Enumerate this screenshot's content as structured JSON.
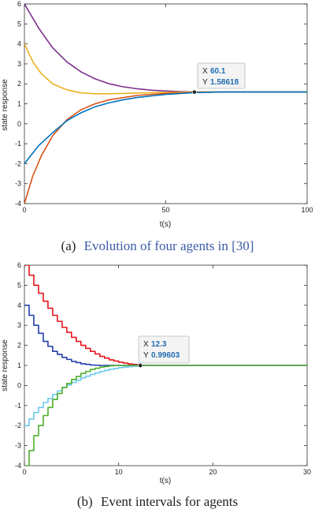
{
  "chart_data": [
    {
      "type": "line",
      "title": "",
      "caption": {
        "label": "(a)",
        "text": "Evolution of four agents in [30]"
      },
      "xlabel": "t(s)",
      "ylabel": "state response",
      "xlim": [
        0,
        100
      ],
      "ylim": [
        -4,
        6
      ],
      "xticks": [
        0,
        50,
        100
      ],
      "yticks": [
        -4,
        -3,
        -2,
        -1,
        0,
        1,
        2,
        3,
        4,
        5,
        6
      ],
      "grid": false,
      "legend": "none",
      "datatip": {
        "x_label": "X",
        "x_value": "60.1",
        "y_label": "Y",
        "y_value": "1.58618",
        "x": 60.1,
        "y": 1.58618
      },
      "series": [
        {
          "color": "#7e2f8e",
          "x": [
            0,
            5,
            10,
            15,
            20,
            25,
            30,
            35,
            40,
            45,
            50,
            55,
            60,
            70,
            80,
            90,
            100
          ],
          "values": [
            6.0,
            4.8,
            3.8,
            3.1,
            2.6,
            2.25,
            2.0,
            1.85,
            1.75,
            1.68,
            1.64,
            1.61,
            1.59,
            1.59,
            1.59,
            1.59,
            1.59
          ]
        },
        {
          "color": "#edb120",
          "x": [
            0,
            3,
            6,
            10,
            15,
            20,
            25,
            30,
            40,
            50,
            60,
            70,
            80,
            90,
            100
          ],
          "values": [
            4.0,
            3.1,
            2.5,
            2.0,
            1.7,
            1.55,
            1.5,
            1.5,
            1.54,
            1.57,
            1.59,
            1.59,
            1.59,
            1.59,
            1.59
          ]
        },
        {
          "color": "#d95319",
          "x": [
            0,
            3,
            6,
            10,
            15,
            20,
            25,
            30,
            40,
            50,
            60,
            70,
            80,
            90,
            100
          ],
          "values": [
            -4.0,
            -2.6,
            -1.6,
            -0.6,
            0.2,
            0.7,
            1.0,
            1.2,
            1.42,
            1.52,
            1.57,
            1.59,
            1.59,
            1.59,
            1.59
          ]
        },
        {
          "color": "#0072bd",
          "x": [
            0,
            5,
            10,
            15,
            20,
            25,
            30,
            35,
            40,
            50,
            60,
            70,
            80,
            90,
            100
          ],
          "values": [
            -2.0,
            -1.1,
            -0.45,
            0.15,
            0.55,
            0.85,
            1.05,
            1.2,
            1.32,
            1.47,
            1.56,
            1.59,
            1.59,
            1.59,
            1.59
          ]
        }
      ]
    },
    {
      "type": "line",
      "title": "",
      "caption": {
        "label": "(b)",
        "text": "Event intervals for agents"
      },
      "xlabel": "t(s)",
      "ylabel": "state response",
      "xlim": [
        0,
        30
      ],
      "ylim": [
        -4,
        6
      ],
      "xticks": [
        0,
        10,
        20,
        30
      ],
      "yticks": [
        -4,
        -3,
        -2,
        -1,
        0,
        1,
        2,
        3,
        4,
        5,
        6
      ],
      "grid": false,
      "legend": "none",
      "datatip": {
        "x_label": "X",
        "x_value": "12.3",
        "y_label": "Y",
        "y_value": "0.99603",
        "x": 12.3,
        "y": 0.99603
      },
      "series": [
        {
          "color": "#e8141c",
          "step": 0.5,
          "x": [
            0,
            1,
            2,
            3,
            4,
            5,
            6,
            7,
            8,
            9,
            10,
            11,
            12,
            13,
            30
          ],
          "values": [
            6.0,
            5.0,
            4.2,
            3.5,
            2.9,
            2.4,
            2.0,
            1.7,
            1.45,
            1.28,
            1.16,
            1.07,
            1.02,
            1.0,
            1.0
          ]
        },
        {
          "color": "#1f3ea8",
          "step": 0.5,
          "x": [
            0,
            1,
            2,
            3,
            4,
            5,
            6,
            7,
            8,
            30
          ],
          "values": [
            4.0,
            3.0,
            2.2,
            1.7,
            1.4,
            1.2,
            1.08,
            1.02,
            1.0,
            1.0
          ]
        },
        {
          "color": "#6dc9ee",
          "step": 0.5,
          "x": [
            0,
            1,
            2,
            3,
            4,
            5,
            6,
            7,
            8,
            9,
            10,
            11,
            12,
            13,
            30
          ],
          "values": [
            -2.0,
            -1.35,
            -0.85,
            -0.45,
            -0.1,
            0.15,
            0.38,
            0.55,
            0.7,
            0.81,
            0.89,
            0.94,
            0.98,
            1.0,
            1.0
          ]
        },
        {
          "color": "#4caf2a",
          "step": 0.5,
          "x": [
            0,
            1,
            2,
            3,
            4,
            5,
            6,
            7,
            8,
            9,
            10,
            11,
            30
          ],
          "values": [
            -4.0,
            -2.5,
            -1.5,
            -0.7,
            -0.1,
            0.3,
            0.6,
            0.8,
            0.92,
            0.98,
            1.0,
            1.0,
            1.0
          ]
        }
      ]
    }
  ]
}
